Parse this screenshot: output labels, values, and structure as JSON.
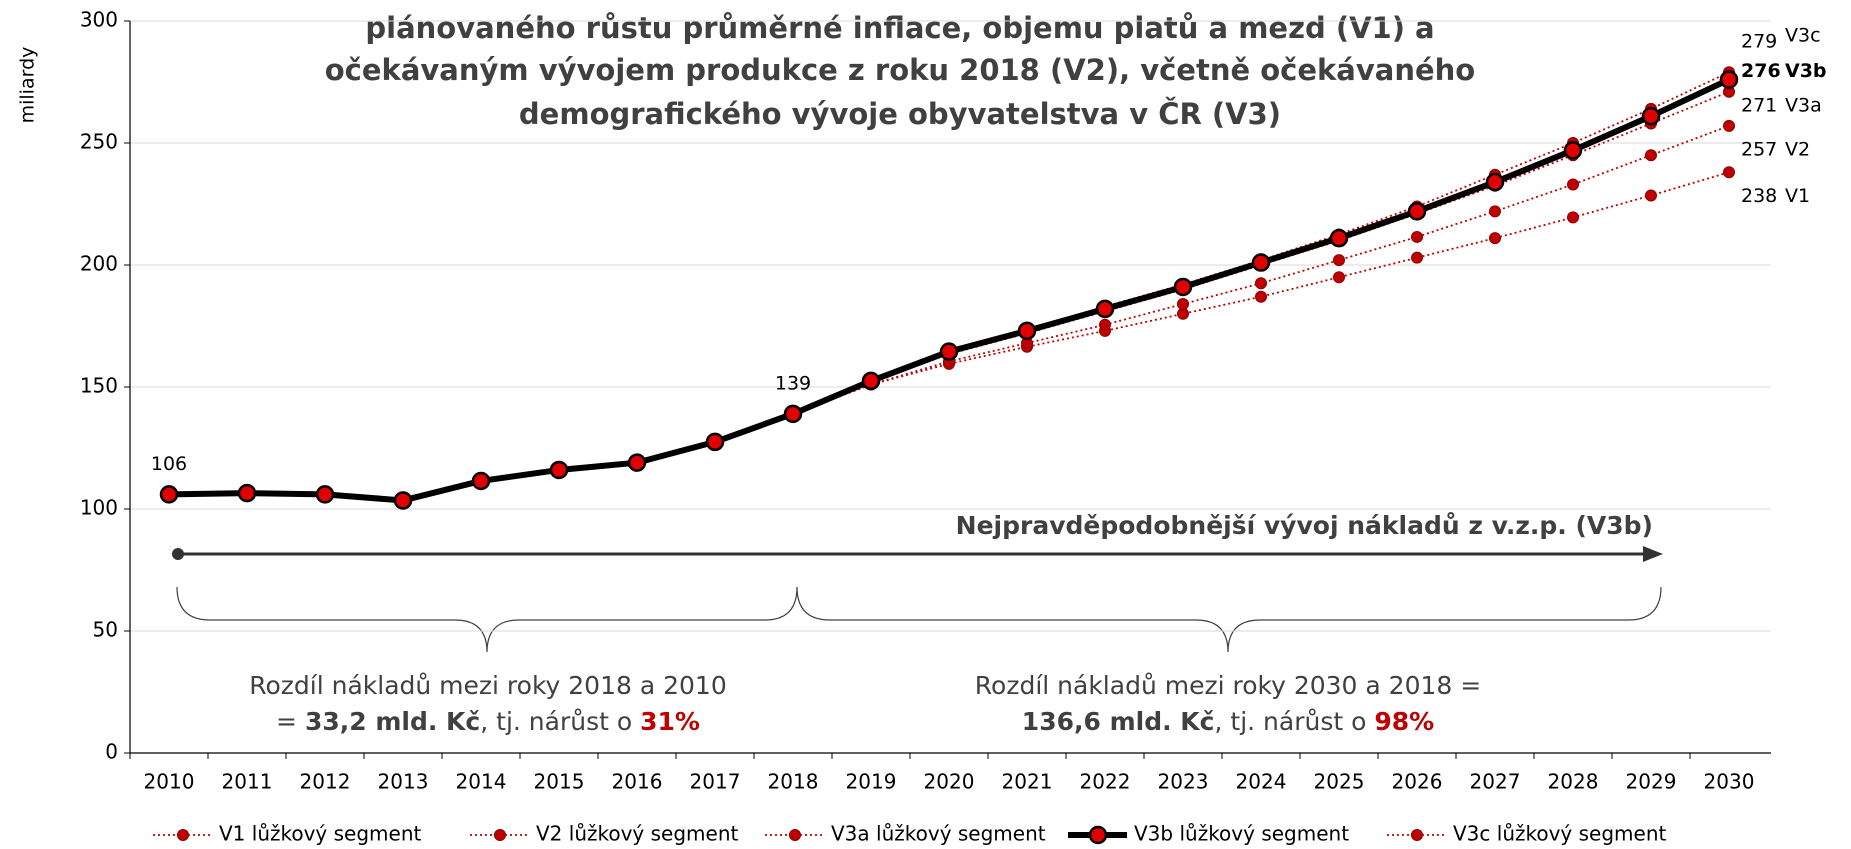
{
  "chart_data": {
    "type": "line",
    "title_lines": [
      "plánovaného růstu průměrné inflace, objemu platů a mezd (V1) a",
      "očekávaným vývojem produkce z roku 2018 (V2), včetně očekávaného",
      "demografického vývoje obyvatelstva v ČR (V3)"
    ],
    "y_label": "miliardy",
    "categories": [
      "2010",
      "2011",
      "2012",
      "2013",
      "2014",
      "2015",
      "2016",
      "2017",
      "2018",
      "2019",
      "2020",
      "2021",
      "2022",
      "2023",
      "2024",
      "2025",
      "2026",
      "2027",
      "2028",
      "2029",
      "2030"
    ],
    "ylim": [
      0,
      300
    ],
    "yticks": [
      0,
      50,
      100,
      150,
      200,
      250,
      300
    ],
    "grid": true,
    "legend": "bottom",
    "series": [
      {
        "name": "V1 lůžkový segment",
        "end_label": "V1",
        "color": "#c00000",
        "line_style": "dotted",
        "values": [
          106,
          106.5,
          106,
          103.5,
          111.5,
          116,
          119,
          127.5,
          139,
          151,
          159.5,
          166.5,
          173,
          180,
          187,
          195,
          203,
          211,
          219.5,
          228.5,
          238
        ]
      },
      {
        "name": "V2 lůžkový segment",
        "end_label": "V2",
        "color": "#c00000",
        "line_style": "dotted",
        "values": [
          106,
          106.5,
          106,
          103.5,
          111.5,
          116,
          119,
          127.5,
          139,
          151,
          160.5,
          168,
          175.5,
          184,
          192.5,
          202,
          211.5,
          222,
          233,
          245,
          257
        ]
      },
      {
        "name": "V3a lůžkový segment",
        "end_label": "V3a",
        "color": "#c00000",
        "line_style": "dotted",
        "values": [
          106,
          106.5,
          106,
          103.5,
          111.5,
          116,
          119,
          127.5,
          139,
          152,
          163.5,
          172,
          181,
          190,
          200,
          210,
          221,
          232.5,
          245,
          258,
          271
        ]
      },
      {
        "name": "V3b lůžkový segment",
        "end_label": "V3b",
        "color": "#000000",
        "line_style": "solid",
        "values": [
          106,
          106.5,
          106,
          103.5,
          111.5,
          116,
          119,
          127.5,
          139,
          152.5,
          164.5,
          173,
          182,
          191,
          201,
          211,
          222,
          234,
          247,
          261,
          276
        ]
      },
      {
        "name": "V3c lůžkový segment",
        "end_label": "V3c",
        "color": "#c00000",
        "line_style": "dotted",
        "values": [
          106,
          106.5,
          106,
          103.5,
          111.5,
          116,
          119,
          127.5,
          139,
          153,
          165,
          173.5,
          183,
          192,
          202,
          212.5,
          224,
          237,
          250,
          264,
          279
        ]
      }
    ],
    "annotations": [
      {
        "text": "Nejpravděpodobnější vývoj nákladů z v.z.p. (V3b)"
      },
      {
        "lines": [
          [
            {
              "text": "Rozdíl nákladů mezi roky 2018 a 2010"
            }
          ],
          [
            {
              "text": "= "
            },
            {
              "text": "33,2 mld. Kč",
              "bold": true
            },
            {
              "text": ", tj. nárůst o "
            },
            {
              "text": "31%",
              "bold": true,
              "color": "#c00000"
            }
          ]
        ]
      },
      {
        "lines": [
          [
            {
              "text": "Rozdíl nákladů mezi roky 2030 a 2018 ="
            }
          ],
          [
            {
              "text": "136,6 mld. Kč",
              "bold": true
            },
            {
              "text": ", tj. nárůst o "
            },
            {
              "text": "98%",
              "bold": true,
              "color": "#c00000"
            }
          ]
        ]
      }
    ]
  }
}
